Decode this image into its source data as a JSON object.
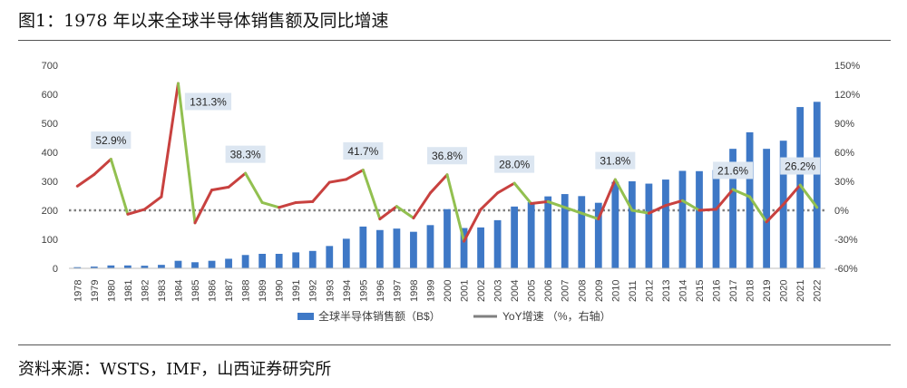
{
  "title": "图1：1978 年以来全球半导体销售额及同比增速",
  "source": "资料来源：WSTS，IMF，山西证券研究所",
  "colors": {
    "bar": "#3E78C6",
    "line_up": "#C8413F",
    "line_down": "#92C050",
    "zero_ref": "#808080",
    "label_box": "#DCE6F1"
  },
  "chart_data": {
    "type": "bar",
    "categories": [
      "1978",
      "1979",
      "1980",
      "1981",
      "1982",
      "1983",
      "1984",
      "1985",
      "1986",
      "1987",
      "1988",
      "1989",
      "1990",
      "1991",
      "1992",
      "1993",
      "1994",
      "1995",
      "1996",
      "1997",
      "1998",
      "1999",
      "2000",
      "2001",
      "2002",
      "2003",
      "2004",
      "2005",
      "2006",
      "2007",
      "2008",
      "2009",
      "2010",
      "2011",
      "2012",
      "2013",
      "2014",
      "2015",
      "2016",
      "2017",
      "2018",
      "2019",
      "2020",
      "2021",
      "2022"
    ],
    "series": [
      {
        "name": "全球半导体销售额（B$）",
        "type": "bar",
        "axis": "left",
        "values": [
          4,
          6,
          10,
          10,
          9,
          12,
          26,
          21,
          26,
          33,
          46,
          50,
          50,
          55,
          60,
          77,
          102,
          144,
          132,
          137,
          126,
          149,
          204,
          139,
          141,
          166,
          213,
          228,
          248,
          256,
          249,
          226,
          298,
          300,
          292,
          306,
          336,
          335,
          339,
          412,
          469,
          412,
          440,
          556,
          574
        ]
      },
      {
        "name": "YoY增速 （%，右轴）",
        "type": "line",
        "axis": "right",
        "values": [
          25,
          37,
          52.9,
          -4,
          1,
          14,
          131.3,
          -13,
          21,
          24,
          38.3,
          8,
          3,
          8,
          9,
          29,
          32,
          41.7,
          -9,
          4,
          -8,
          18,
          36.8,
          -32,
          1,
          18,
          28.0,
          7,
          9,
          3,
          -3,
          -9,
          31.8,
          0,
          -3,
          5,
          10,
          0,
          1,
          21.6,
          14,
          -12,
          6,
          26.2,
          3
        ]
      }
    ],
    "annotations": [
      {
        "year": "1980",
        "text": "52.9%"
      },
      {
        "year": "1984",
        "text": "131.3%"
      },
      {
        "year": "1988",
        "text": "38.3%"
      },
      {
        "year": "1995",
        "text": "41.7%"
      },
      {
        "year": "2000",
        "text": "36.8%"
      },
      {
        "year": "2004",
        "text": "28.0%"
      },
      {
        "year": "2010",
        "text": "31.8%"
      },
      {
        "year": "2017",
        "text": "21.6%"
      },
      {
        "year": "2021",
        "text": "26.2%"
      }
    ],
    "y_left": {
      "min": 0,
      "max": 700,
      "step": 100,
      "ticks": [
        "0",
        "100",
        "200",
        "300",
        "400",
        "500",
        "600",
        "700"
      ]
    },
    "y_right": {
      "min": -60,
      "max": 150,
      "step": 30,
      "ticks": [
        "-60%",
        "-30%",
        "0%",
        "30%",
        "60%",
        "90%",
        "120%",
        "150%"
      ]
    },
    "legend": {
      "position": "bottom",
      "items": [
        "全球半导体销售额（B$）",
        "YoY增速 （%，右轴）"
      ]
    },
    "grid": false
  }
}
